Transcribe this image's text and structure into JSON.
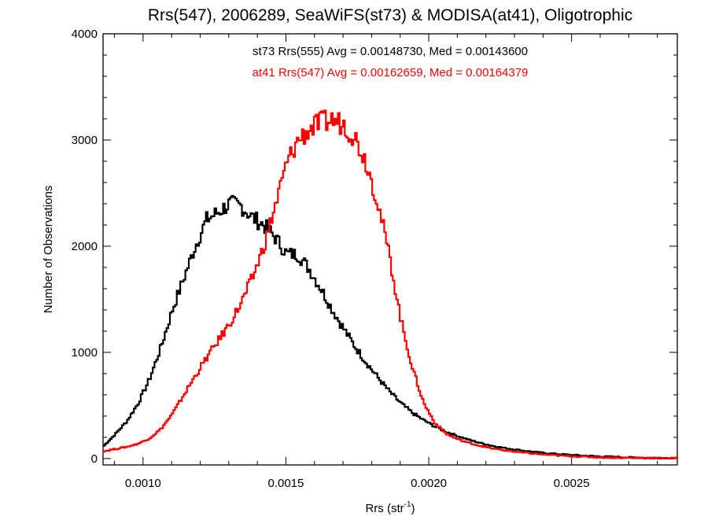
{
  "chart_data": {
    "type": "line",
    "title": "Rrs(547), 2006289, SeaWiFS(st73) & MODISA(at41), Oligotrophic",
    "xlabel": {
      "base": "Rrs (str",
      "sup": "-1",
      "close": ")"
    },
    "ylabel": "Number of Observations",
    "xlim": [
      0.00086,
      0.00287
    ],
    "ylim": [
      -60,
      4000
    ],
    "x_ticks": [
      0.001,
      0.0015,
      0.002,
      0.0025
    ],
    "x_tick_labels": [
      "0.0010",
      "0.0015",
      "0.0020",
      "0.0025"
    ],
    "y_ticks": [
      0,
      1000,
      2000,
      3000,
      4000
    ],
    "y_tick_labels": [
      "0",
      "1000",
      "2000",
      "3000",
      "4000"
    ],
    "grid": false,
    "step": "histogram",
    "annotations": [
      {
        "text": "st73 Rrs(555) Avg = 0.00148730, Med = 0.00143600",
        "color": "#000000"
      },
      {
        "text": "at41 Rrs(547) Avg = 0.00162659, Med = 0.00164379",
        "color": "#ff0000"
      }
    ],
    "series": [
      {
        "color": "#000000",
        "points": [
          [
            0.00086,
            120
          ],
          [
            0.0009,
            230
          ],
          [
            0.00094,
            350
          ],
          [
            0.00098,
            520
          ],
          [
            0.00102,
            750
          ],
          [
            0.00106,
            1050
          ],
          [
            0.0011,
            1400
          ],
          [
            0.00114,
            1700
          ],
          [
            0.00118,
            2000
          ],
          [
            0.00122,
            2250
          ],
          [
            0.00126,
            2320
          ],
          [
            0.0013,
            2400
          ],
          [
            0.00134,
            2380
          ],
          [
            0.00138,
            2270
          ],
          [
            0.00142,
            2200
          ],
          [
            0.00146,
            2080
          ],
          [
            0.0015,
            1930
          ],
          [
            0.00154,
            1920
          ],
          [
            0.00158,
            1780
          ],
          [
            0.00162,
            1600
          ],
          [
            0.00166,
            1400
          ],
          [
            0.0017,
            1220
          ],
          [
            0.00174,
            1050
          ],
          [
            0.00178,
            900
          ],
          [
            0.00182,
            760
          ],
          [
            0.00186,
            630
          ],
          [
            0.0019,
            520
          ],
          [
            0.00194,
            430
          ],
          [
            0.00198,
            360
          ],
          [
            0.00202,
            300
          ],
          [
            0.00206,
            250
          ],
          [
            0.0021,
            210
          ],
          [
            0.00214,
            175
          ],
          [
            0.00218,
            145
          ],
          [
            0.00222,
            120
          ],
          [
            0.00226,
            100
          ],
          [
            0.0023,
            85
          ],
          [
            0.00234,
            70
          ],
          [
            0.00238,
            58
          ],
          [
            0.00242,
            48
          ],
          [
            0.00246,
            40
          ],
          [
            0.0025,
            33
          ],
          [
            0.00254,
            27
          ],
          [
            0.00258,
            22
          ],
          [
            0.00262,
            18
          ],
          [
            0.00266,
            14
          ],
          [
            0.0027,
            11
          ],
          [
            0.00274,
            9
          ],
          [
            0.00278,
            7
          ],
          [
            0.00282,
            5
          ],
          [
            0.00287,
            3
          ]
        ]
      },
      {
        "color": "#ff0000",
        "points": [
          [
            0.00086,
            70
          ],
          [
            0.0009,
            90
          ],
          [
            0.00094,
            110
          ],
          [
            0.00098,
            140
          ],
          [
            0.00102,
            190
          ],
          [
            0.00106,
            280
          ],
          [
            0.0011,
            420
          ],
          [
            0.00114,
            600
          ],
          [
            0.00118,
            780
          ],
          [
            0.00122,
            950
          ],
          [
            0.00126,
            1110
          ],
          [
            0.0013,
            1270
          ],
          [
            0.00134,
            1460
          ],
          [
            0.00138,
            1700
          ],
          [
            0.00142,
            2000
          ],
          [
            0.00146,
            2380
          ],
          [
            0.0015,
            2780
          ],
          [
            0.00154,
            3000
          ],
          [
            0.00158,
            3100
          ],
          [
            0.00162,
            3160
          ],
          [
            0.00166,
            3190
          ],
          [
            0.0017,
            3150
          ],
          [
            0.00174,
            3020
          ],
          [
            0.00178,
            2780
          ],
          [
            0.00182,
            2400
          ],
          [
            0.00186,
            1900
          ],
          [
            0.0019,
            1300
          ],
          [
            0.00194,
            850
          ],
          [
            0.00198,
            520
          ],
          [
            0.00202,
            330
          ],
          [
            0.00206,
            230
          ],
          [
            0.0021,
            180
          ],
          [
            0.00214,
            145
          ],
          [
            0.00218,
            118
          ],
          [
            0.00222,
            95
          ],
          [
            0.00226,
            78
          ],
          [
            0.0023,
            64
          ],
          [
            0.00234,
            52
          ],
          [
            0.00238,
            42
          ],
          [
            0.00242,
            34
          ],
          [
            0.00246,
            27
          ],
          [
            0.0025,
            22
          ],
          [
            0.00254,
            17
          ],
          [
            0.00258,
            13
          ],
          [
            0.00262,
            10
          ],
          [
            0.00266,
            8
          ],
          [
            0.0027,
            6
          ],
          [
            0.00274,
            5
          ],
          [
            0.00278,
            4
          ],
          [
            0.00282,
            3
          ],
          [
            0.00287,
            2
          ]
        ]
      }
    ]
  }
}
